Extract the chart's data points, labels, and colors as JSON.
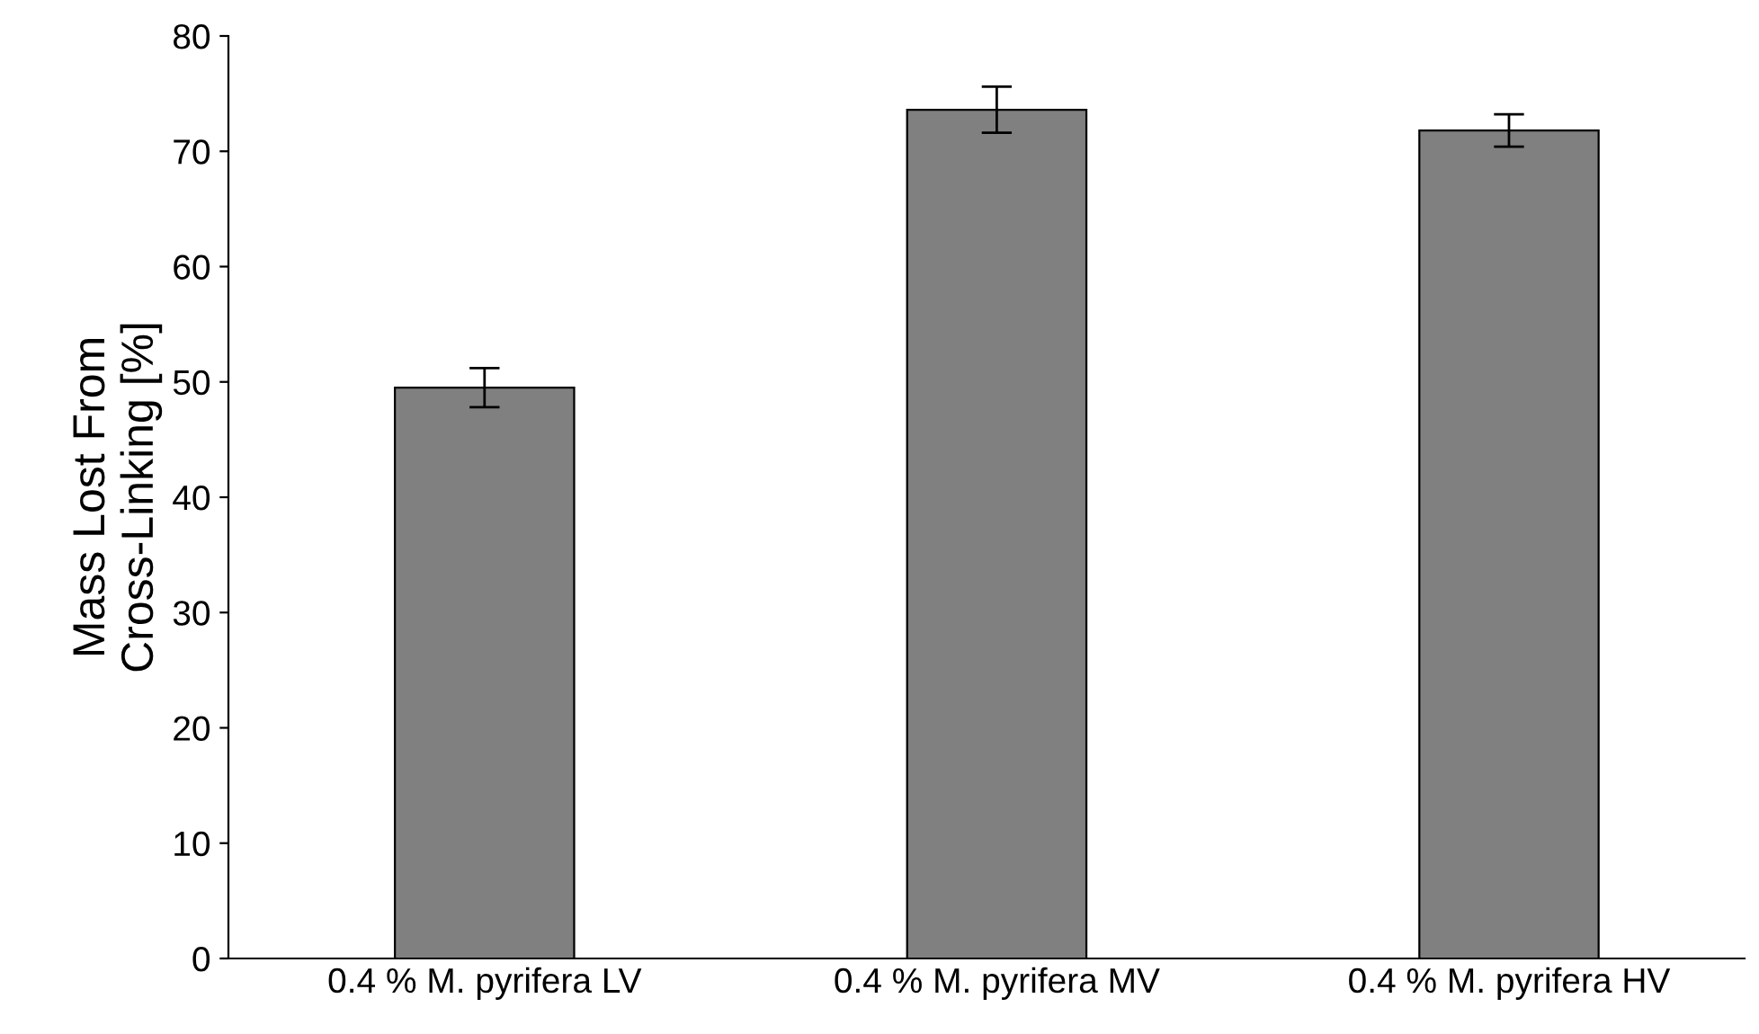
{
  "chart_data": {
    "type": "bar",
    "ylabel": "Mass Lost From\nCross-Linking [%]",
    "categories": [
      "0.4 % M. pyrifera LV",
      "0.4 % M. pyrifera MV",
      "0.4 % M. pyrifera HV"
    ],
    "values": [
      49.5,
      73.6,
      71.8
    ],
    "errors": [
      1.7,
      2.0,
      1.4
    ],
    "color": "#808080",
    "ylim": [
      0,
      80
    ],
    "yticks": [
      0,
      10,
      20,
      30,
      40,
      50,
      60,
      70,
      80
    ],
    "grid": false,
    "legend": false
  }
}
